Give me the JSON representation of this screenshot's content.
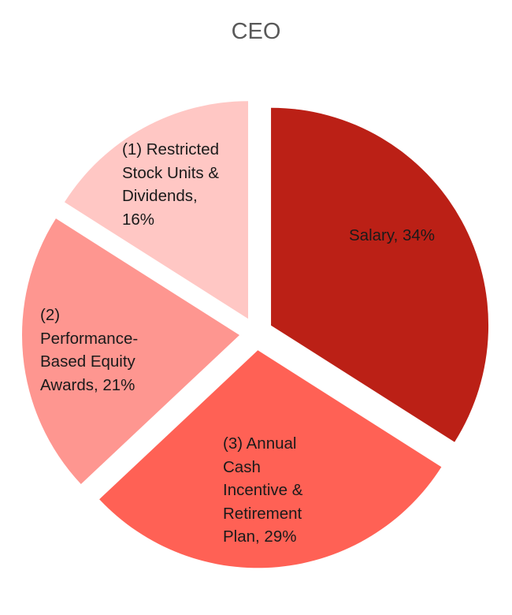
{
  "chart_data": {
    "type": "pie",
    "title": "CEO",
    "start_angle_deg": 0,
    "direction": "clockwise",
    "exploded": true,
    "slices": [
      {
        "label": "Salary",
        "value": 34,
        "display": "Salary, 34%",
        "color": "#bb2016"
      },
      {
        "label": "(3) Annual Cash Incentive & Retirement Plan",
        "value": 29,
        "display": "(3) Annual Cash Incentive & Retirement Plan, 29%",
        "color": "#ff6155"
      },
      {
        "label": "(2) Performance-Based Equity Awards",
        "value": 21,
        "display": "(2) Performance-Based Equity Awards, 21%",
        "color": "#fe9690"
      },
      {
        "label": "(1) Restricted Stock Units & Dividends",
        "value": 16,
        "display": "(1) Restricted Stock Units & Dividends, 16%",
        "color": "#ffc7c4"
      }
    ],
    "legend": "none (data labels on slices)"
  },
  "labels": {
    "salary_line1": "Salary, 34%",
    "cash_line1": "(3) Annual",
    "cash_line2": "Cash",
    "cash_line3": "Incentive &",
    "cash_line4": "Retirement",
    "cash_line5": "Plan, 29%",
    "perf_line1": "(2)",
    "perf_line2": "Performance-",
    "perf_line3": "Based Equity",
    "perf_line4": "Awards, 21%",
    "rsu_line1": "(1) Restricted",
    "rsu_line2": "Stock Units &",
    "rsu_line3": "Dividends,",
    "rsu_line4": "16%"
  }
}
